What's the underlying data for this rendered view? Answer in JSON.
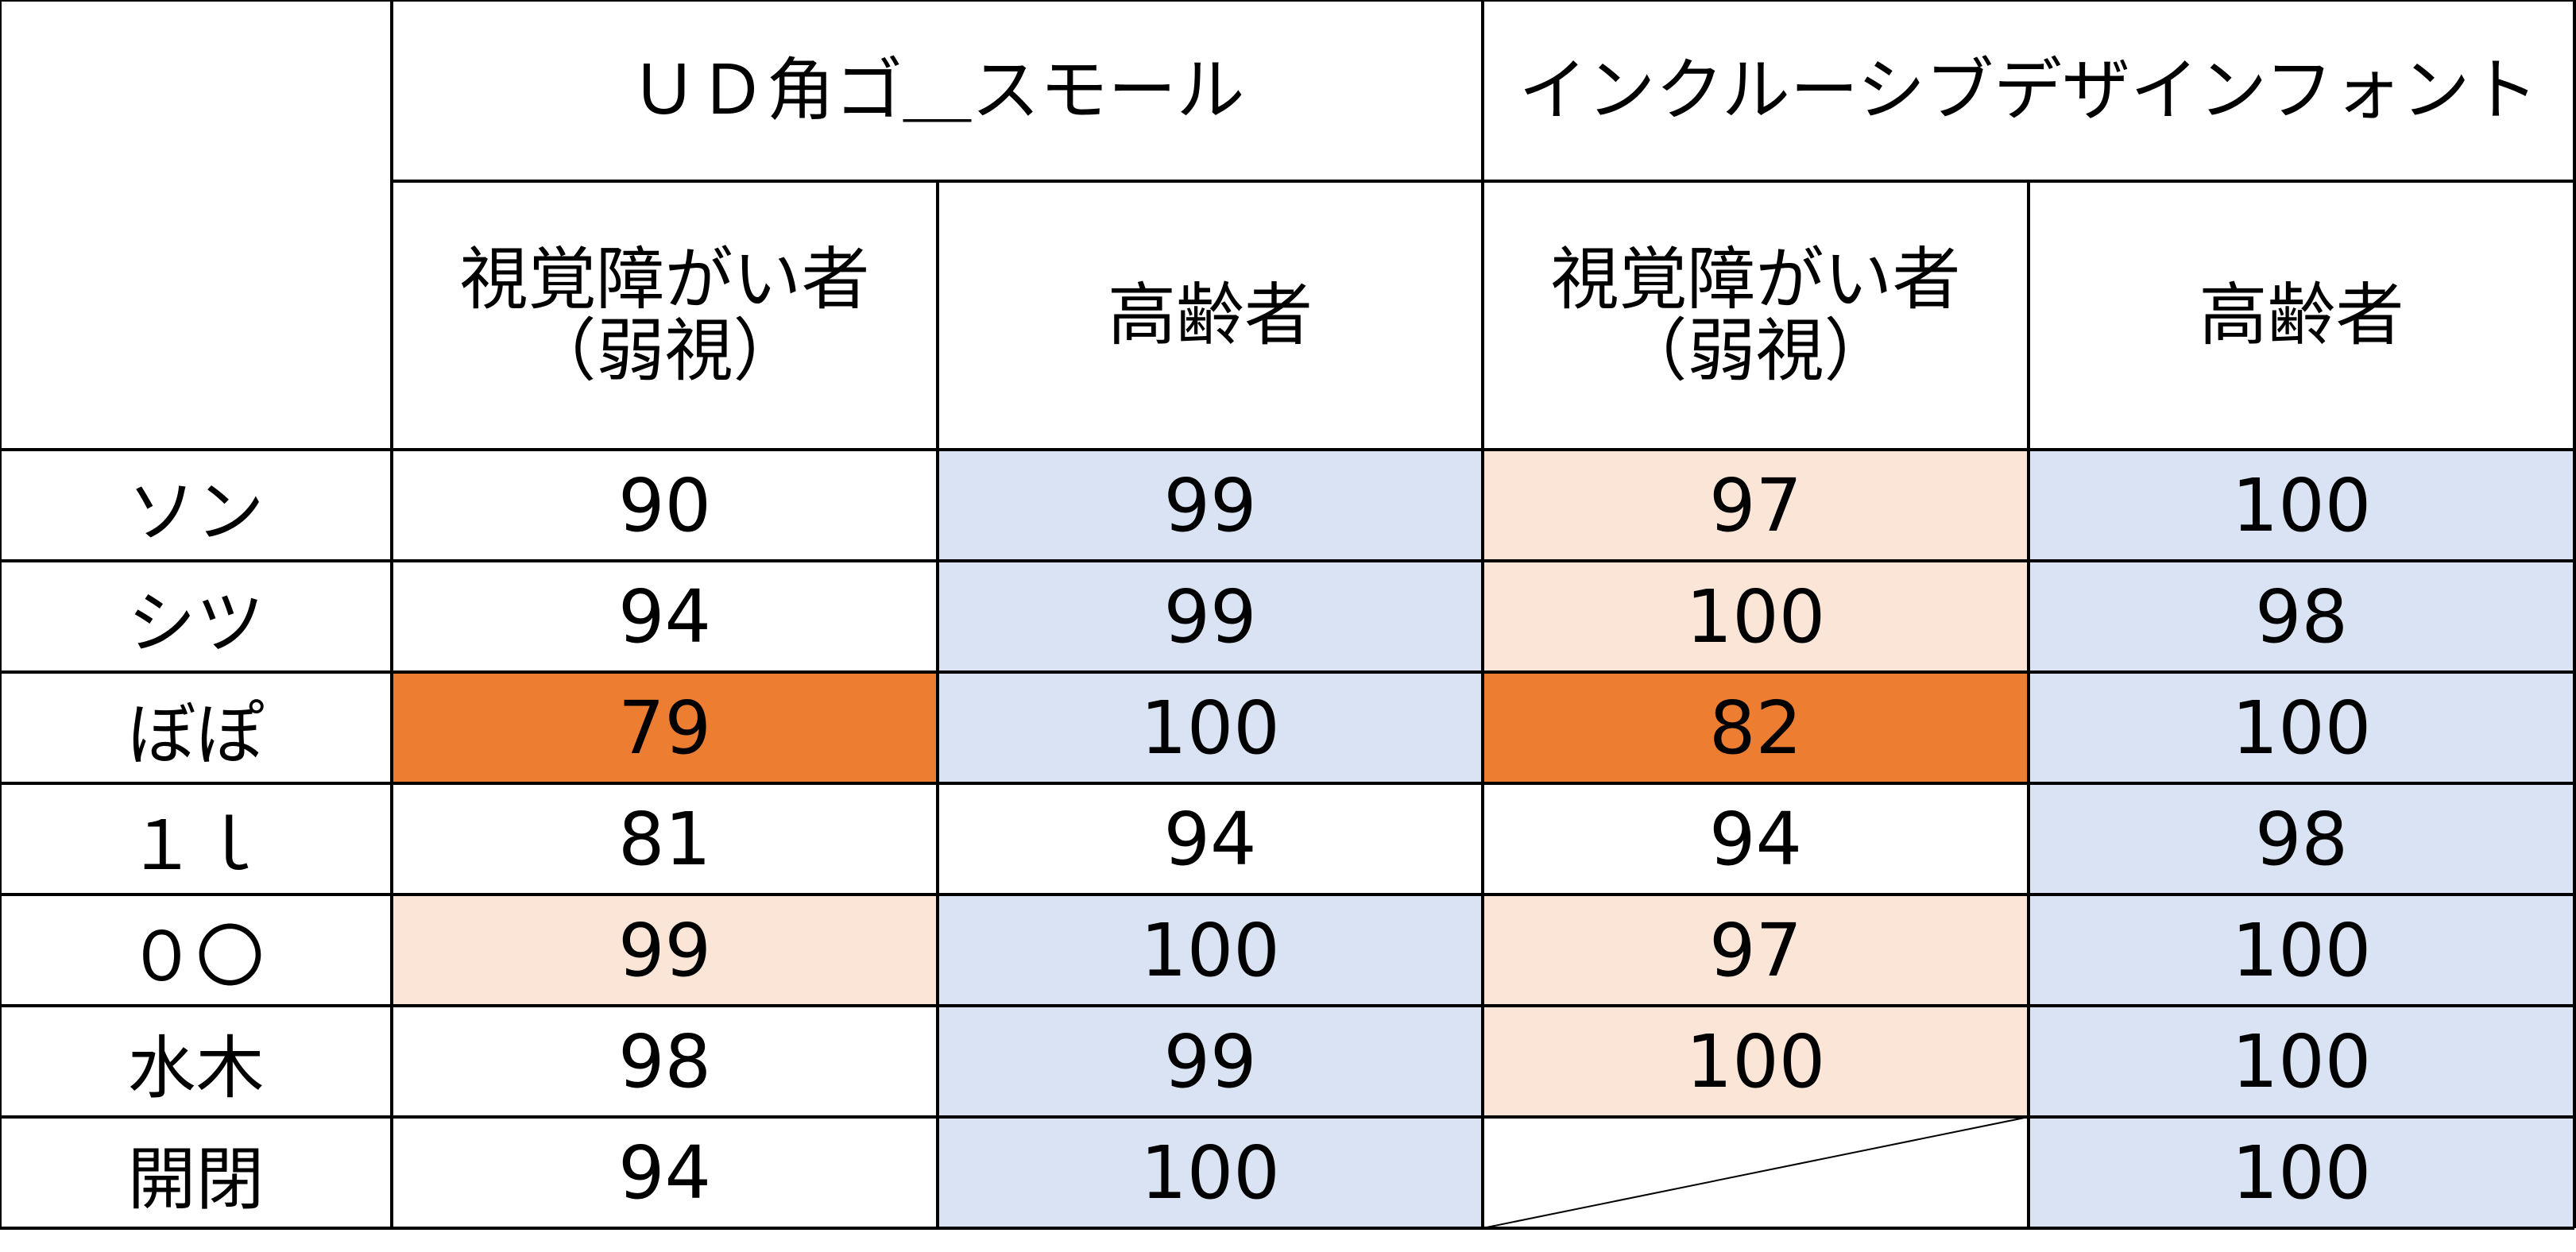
{
  "colors": {
    "blue": "#dae3f3",
    "peach": "#fbe5d6",
    "orange": "#ed7d31",
    "white": "#ffffff"
  },
  "chart_data": {
    "type": "table",
    "groups": [
      "ＵＤ角ゴ＿スモール",
      "インクルーシブデザインフォント"
    ],
    "subcolumns": [
      {
        "line1": "視覚障がい者",
        "line2": "（弱視）"
      },
      {
        "line1": "高齢者",
        "line2": ""
      },
      {
        "line1": "視覚障がい者",
        "line2": "（弱視）"
      },
      {
        "line1": "高齢者",
        "line2": ""
      }
    ],
    "rows": [
      {
        "label": "ソン",
        "values": [
          "90",
          "99",
          "97",
          "100"
        ],
        "fills": [
          "white",
          "blue",
          "peach",
          "blue"
        ]
      },
      {
        "label": "シツ",
        "values": [
          "94",
          "99",
          "100",
          "98"
        ],
        "fills": [
          "white",
          "blue",
          "peach",
          "blue"
        ]
      },
      {
        "label": "ぼぽ",
        "values": [
          "79",
          "100",
          "82",
          "100"
        ],
        "fills": [
          "orange",
          "blue",
          "orange",
          "blue"
        ]
      },
      {
        "label": "１ｌ",
        "values": [
          "81",
          "94",
          "94",
          "98"
        ],
        "fills": [
          "white",
          "white",
          "white",
          "blue"
        ]
      },
      {
        "label": "０〇",
        "values": [
          "99",
          "100",
          "97",
          "100"
        ],
        "fills": [
          "peach",
          "blue",
          "peach",
          "blue"
        ]
      },
      {
        "label": "水木",
        "values": [
          "98",
          "99",
          "100",
          "100"
        ],
        "fills": [
          "white",
          "blue",
          "peach",
          "blue"
        ]
      },
      {
        "label": "開閉",
        "values": [
          "94",
          "100",
          "",
          "100"
        ],
        "fills": [
          "white",
          "blue",
          "none",
          "blue"
        ]
      }
    ]
  }
}
